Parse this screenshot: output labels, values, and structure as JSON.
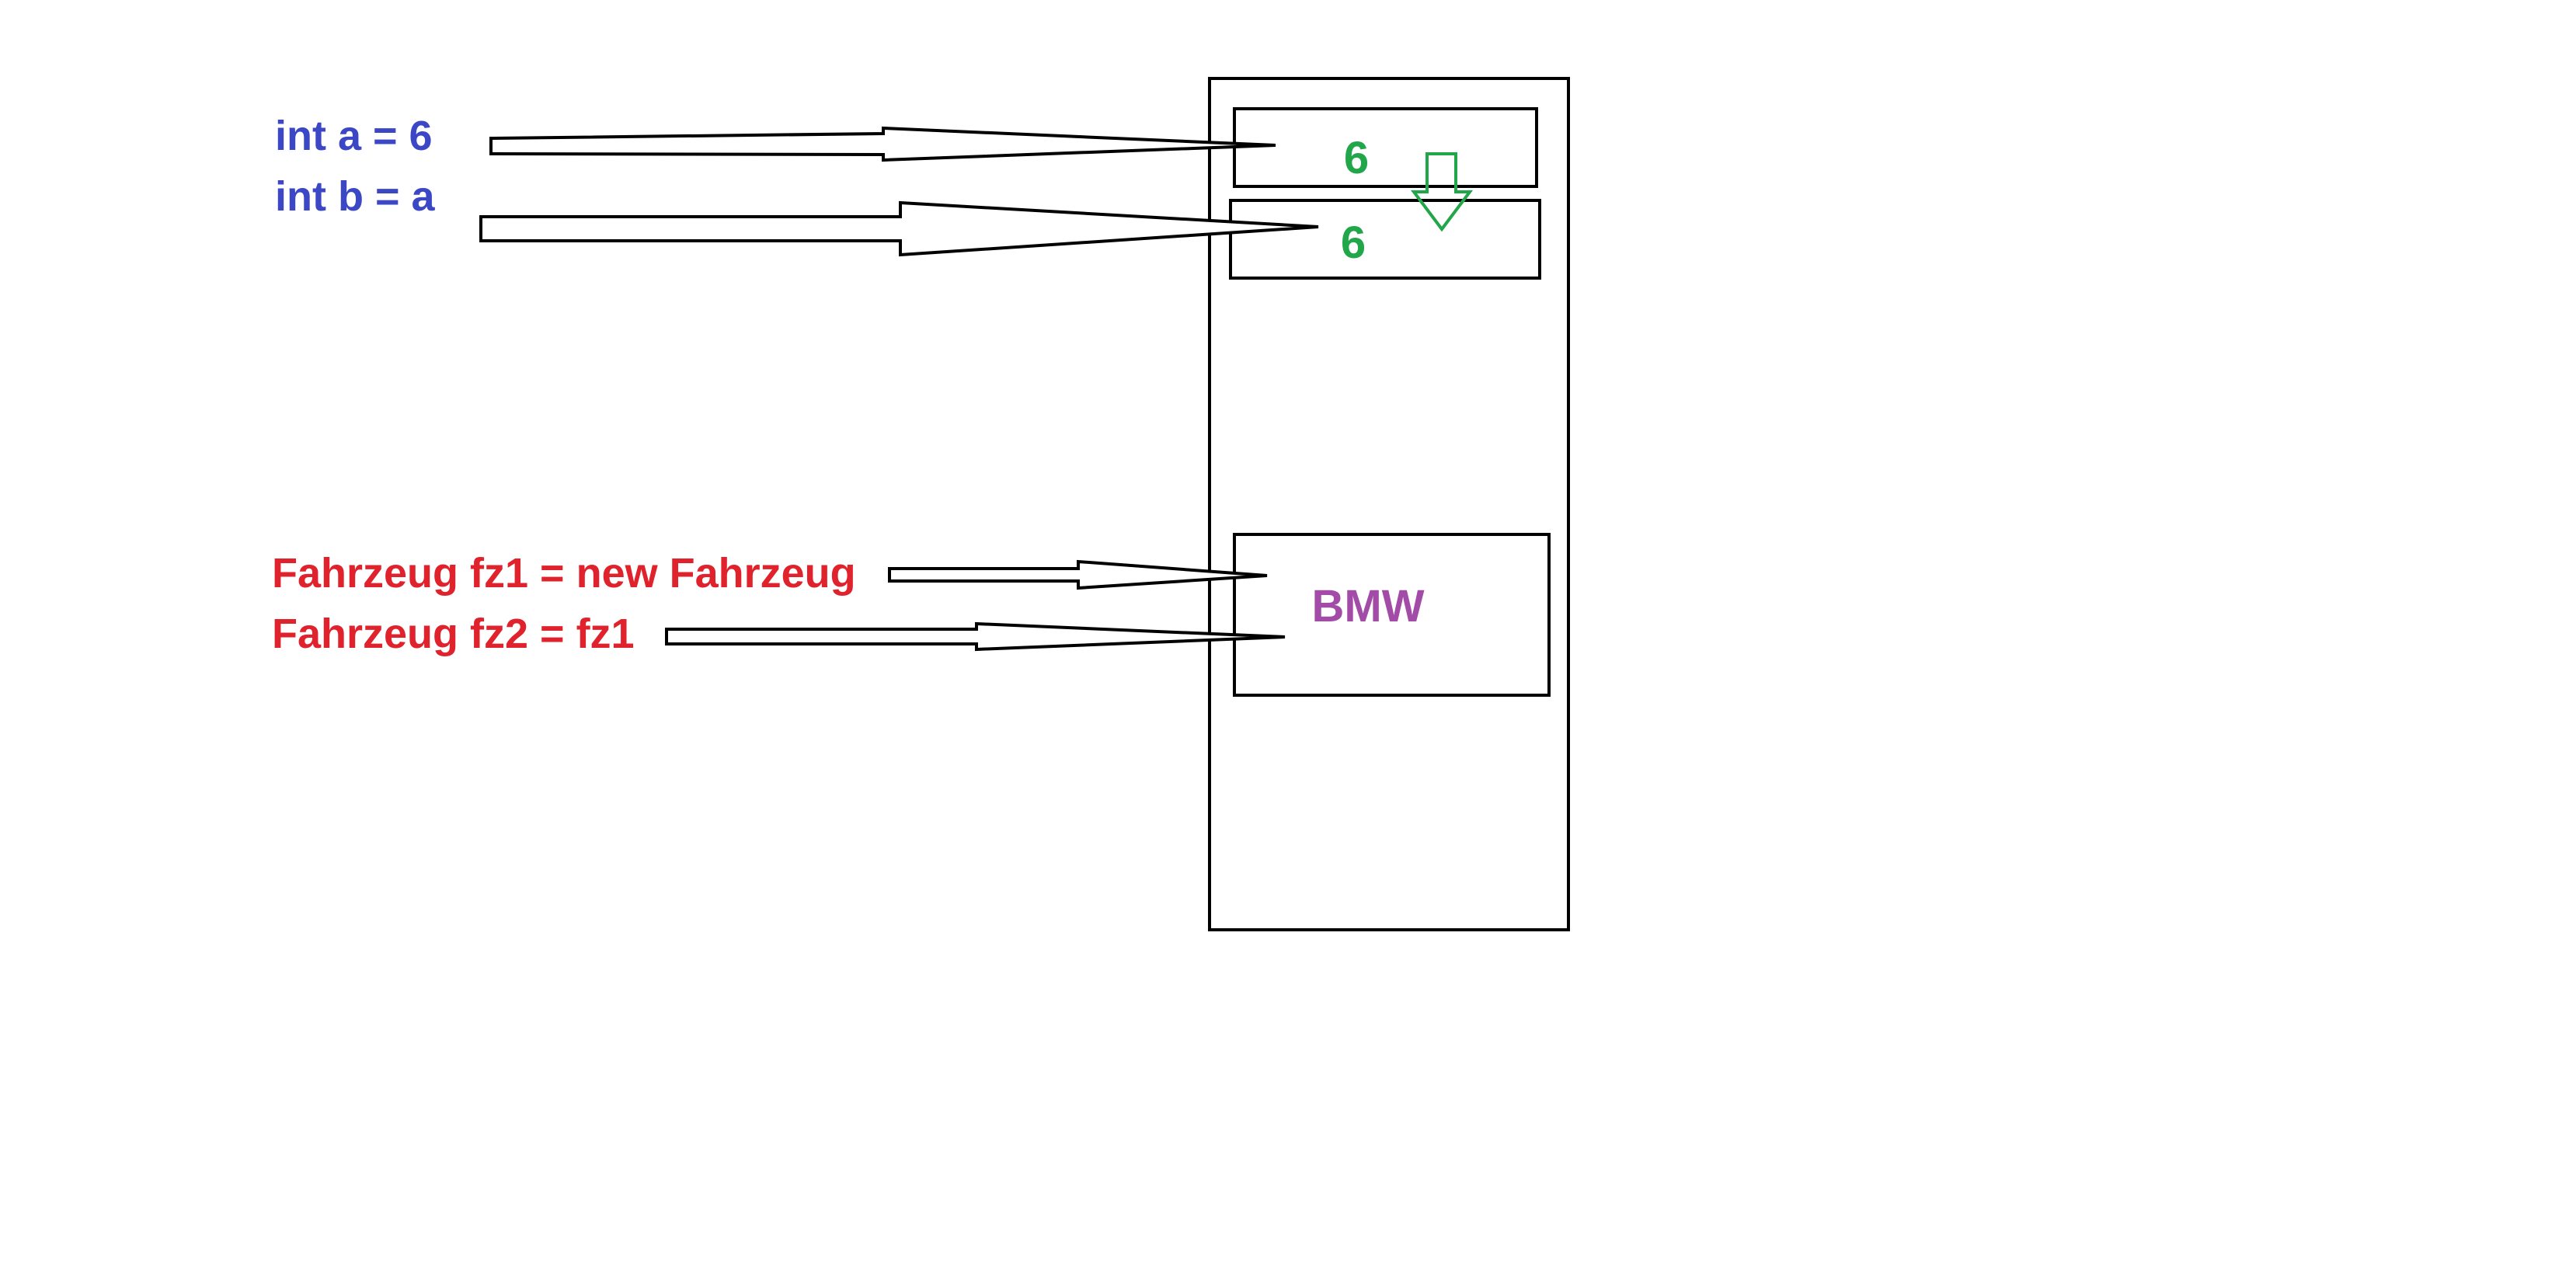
{
  "colors": {
    "primitive_code": "#3B47C4",
    "reference_code": "#E0222C",
    "value": "#21A64A",
    "object": "#A24CA8",
    "outline": "#000000"
  },
  "primitives": {
    "line1": "int a = 6",
    "line2": "int b = a",
    "cell_a_value": "6",
    "cell_b_value": "6"
  },
  "references": {
    "line1": "Fahrzeug fz1 = new Fahrzeug",
    "line2": "Fahrzeug fz2 = fz1",
    "object_value": "BMW"
  },
  "icons": {
    "copy_arrow": "down-arrow-icon"
  }
}
